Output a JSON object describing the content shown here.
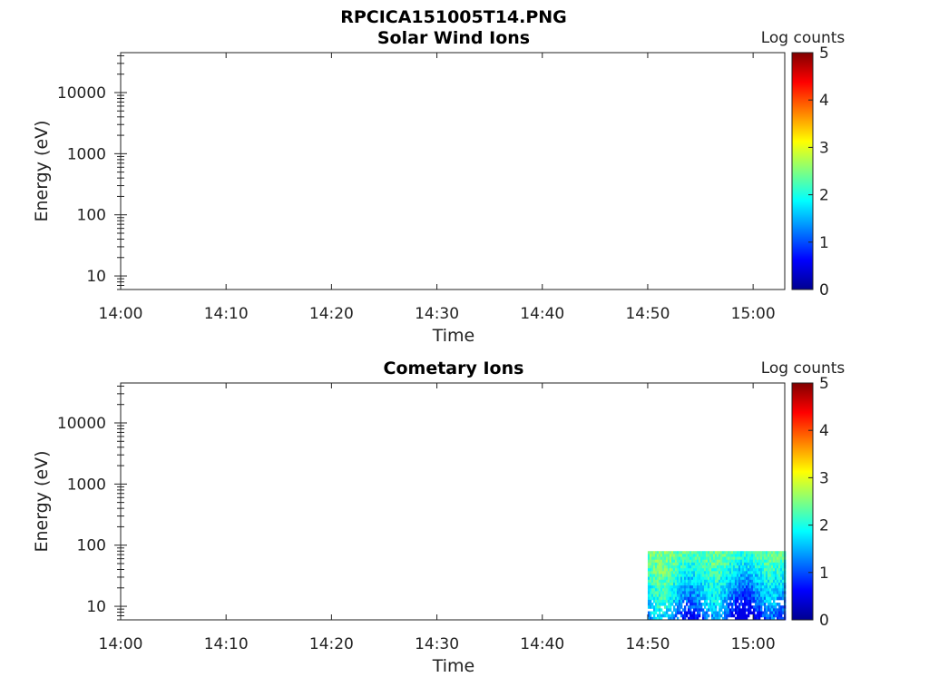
{
  "figure": {
    "title": "RPCICA151005T14.PNG"
  },
  "colors": {
    "axis": "#222222",
    "background": "#ffffff"
  },
  "chart_data": [
    {
      "type": "heatmap",
      "title": "Solar Wind Ions",
      "xlabel": "Time",
      "ylabel": "Energy (eV)",
      "x_ticks": [
        "14:00",
        "14:10",
        "14:20",
        "14:30",
        "14:40",
        "14:50",
        "15:00"
      ],
      "x_range": [
        "14:00",
        "15:03"
      ],
      "y_scale": "log",
      "y_ticks": [
        10,
        100,
        1000,
        10000
      ],
      "y_tick_labels": [
        "10",
        "100",
        "1000",
        "10000"
      ],
      "y_range": [
        6,
        45000
      ],
      "colorbar": {
        "label": "Log counts",
        "range": [
          0,
          5
        ],
        "ticks": [
          0,
          1,
          2,
          3,
          4,
          5
        ],
        "tick_labels": [
          "0",
          "1",
          "2",
          "3",
          "4",
          "5"
        ],
        "colormap": "jet"
      },
      "data_regions": []
    },
    {
      "type": "heatmap",
      "title": "Cometary Ions",
      "xlabel": "Time",
      "ylabel": "Energy (eV)",
      "x_ticks": [
        "14:00",
        "14:10",
        "14:20",
        "14:30",
        "14:40",
        "14:50",
        "15:00"
      ],
      "x_range": [
        "14:00",
        "15:03"
      ],
      "y_scale": "log",
      "y_ticks": [
        10,
        100,
        1000,
        10000
      ],
      "y_tick_labels": [
        "10",
        "100",
        "1000",
        "10000"
      ],
      "y_range": [
        6,
        45000
      ],
      "colorbar": {
        "label": "Log counts",
        "range": [
          0,
          5
        ],
        "ticks": [
          0,
          1,
          2,
          3,
          4,
          5
        ],
        "tick_labels": [
          "0",
          "1",
          "2",
          "3",
          "4",
          "5"
        ],
        "colormap": "jet"
      },
      "data_regions": [
        {
          "time_start": "14:50",
          "time_end": "15:03",
          "energy_min_eV": 6,
          "energy_max_eV": 80,
          "log_counts_range": [
            0,
            2.5
          ],
          "log_counts_at_energy": [
            {
              "energy_eV": 70,
              "log_counts": 2.0
            },
            {
              "energy_eV": 40,
              "log_counts": 1.7
            },
            {
              "energy_eV": 20,
              "log_counts": 1.3
            },
            {
              "energy_eV": 10,
              "log_counts": 0.9
            },
            {
              "energy_eV": 7,
              "log_counts": 0.5
            }
          ]
        }
      ]
    }
  ]
}
